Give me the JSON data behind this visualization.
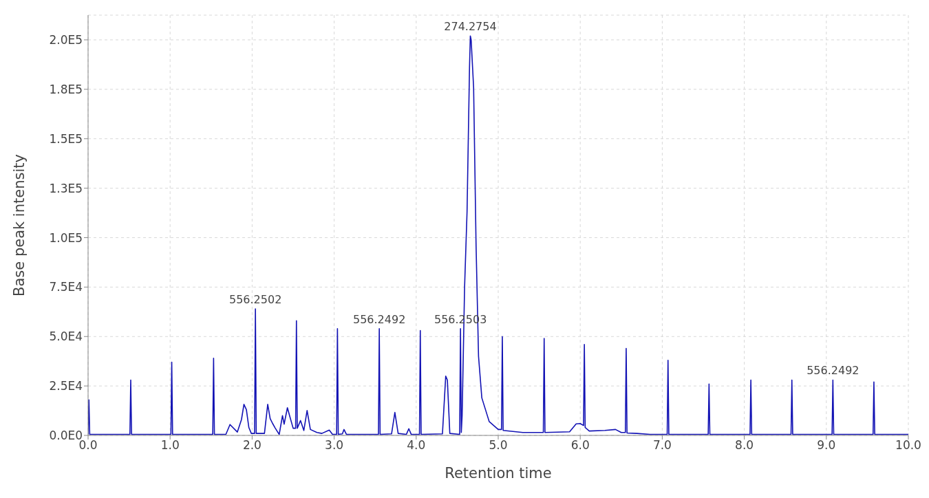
{
  "chart_data": {
    "type": "line",
    "xlabel": "Retention time",
    "ylabel": "Base peak intensity",
    "x": [
      0,
      0.01,
      0.02,
      0.51,
      0.52,
      0.53,
      1.01,
      1.02,
      1.03,
      1.52,
      1.53,
      1.54,
      1.68,
      1.73,
      1.82,
      1.87,
      1.9,
      1.93,
      1.96,
      1.99,
      2.03,
      2.04,
      2.05,
      2.15,
      2.19,
      2.22,
      2.25,
      2.28,
      2.33,
      2.37,
      2.39,
      2.43,
      2.46,
      2.5,
      2.53,
      2.54,
      2.55,
      2.59,
      2.63,
      2.67,
      2.71,
      2.79,
      2.85,
      2.94,
      2.98,
      3.03,
      3.04,
      3.05,
      3.1,
      3.12,
      3.15,
      3.54,
      3.55,
      3.56,
      3.7,
      3.74,
      3.78,
      3.88,
      3.91,
      3.94,
      4.04,
      4.05,
      4.06,
      4.32,
      4.36,
      4.38,
      4.41,
      4.53,
      4.54,
      4.55,
      4.56,
      4.59,
      4.62,
      4.65,
      4.66,
      4.67,
      4.7,
      4.73,
      4.76,
      4.8,
      4.89,
      5.0,
      5.04,
      5.05,
      5.06,
      5.3,
      5.55,
      5.56,
      5.57,
      5.87,
      5.95,
      6.0,
      6.04,
      6.05,
      6.06,
      6.11,
      6.3,
      6.43,
      6.5,
      6.55,
      6.56,
      6.57,
      6.69,
      6.85,
      7.06,
      7.07,
      7.08,
      7.56,
      7.57,
      7.58,
      8.07,
      8.08,
      8.09,
      8.57,
      8.58,
      8.59,
      9.07,
      9.08,
      9.09,
      9.57,
      9.58,
      9.59,
      10
    ],
    "series": [
      {
        "color": "#1212b4",
        "values": [
          500,
          18000,
          500,
          500,
          28000,
          500,
          500,
          37000,
          500,
          500,
          39000,
          500,
          500,
          5500,
          1700,
          8000,
          15700,
          13000,
          4000,
          1000,
          1000,
          64000,
          1000,
          1000,
          15700,
          8500,
          6000,
          3800,
          500,
          10000,
          5700,
          14000,
          9500,
          3600,
          3600,
          58000,
          3600,
          7500,
          2500,
          12600,
          3000,
          1500,
          1000,
          2700,
          500,
          500,
          54000,
          500,
          800,
          3000,
          500,
          500,
          54000,
          500,
          800,
          11600,
          1000,
          500,
          3400,
          500,
          500,
          53000,
          500,
          800,
          30000,
          28000,
          1000,
          500,
          54000,
          1500,
          10000,
          75000,
          113000,
          186000,
          202000,
          200000,
          176000,
          96000,
          40000,
          19000,
          7000,
          3000,
          3000,
          50000,
          2500,
          1500,
          1500,
          49000,
          1500,
          1800,
          5800,
          6000,
          5000,
          46000,
          4000,
          2200,
          2500,
          3000,
          1500,
          1500,
          44000,
          1200,
          1000,
          500,
          500,
          38000,
          500,
          500,
          26000,
          500,
          500,
          28000,
          500,
          500,
          28000,
          500,
          500,
          28000,
          500,
          500,
          27000,
          500,
          500
        ]
      }
    ],
    "xlim": [
      0,
      10
    ],
    "xticks": [
      {
        "value": 0,
        "label": "0.0"
      },
      {
        "value": 1,
        "label": "1.0"
      },
      {
        "value": 2,
        "label": "2.0"
      },
      {
        "value": 3,
        "label": "3.0"
      },
      {
        "value": 4,
        "label": "4.0"
      },
      {
        "value": 5,
        "label": "5.0"
      },
      {
        "value": 6,
        "label": "6.0"
      },
      {
        "value": 7,
        "label": "7.0"
      },
      {
        "value": 8,
        "label": "8.0"
      },
      {
        "value": 9,
        "label": "9.0"
      },
      {
        "value": 10,
        "label": "10.0"
      }
    ],
    "ylim": [
      0,
      212500
    ],
    "yticks": [
      {
        "value": 0,
        "label": "0.0E0"
      },
      {
        "value": 25000,
        "label": "2.5E4"
      },
      {
        "value": 50000,
        "label": "5.0E4"
      },
      {
        "value": 75000,
        "label": "7.5E4"
      },
      {
        "value": 100000,
        "label": "1.0E5"
      },
      {
        "value": 125000,
        "label": "1.3E5"
      },
      {
        "value": 150000,
        "label": "1.5E5"
      },
      {
        "value": 175000,
        "label": "1.8E5"
      },
      {
        "value": 200000,
        "label": "2.0E5"
      }
    ],
    "annotations": [
      {
        "text": "556.2502",
        "x": 2.04,
        "y": 64000
      },
      {
        "text": "556.2492",
        "x": 3.55,
        "y": 54000
      },
      {
        "text": "556.2503",
        "x": 4.54,
        "y": 54000
      },
      {
        "text": "274.2754",
        "x": 4.66,
        "y": 202000
      },
      {
        "text": "556.2492",
        "x": 9.08,
        "y": 28000
      }
    ],
    "grid": true,
    "marker": "none",
    "line_style": "solid"
  }
}
